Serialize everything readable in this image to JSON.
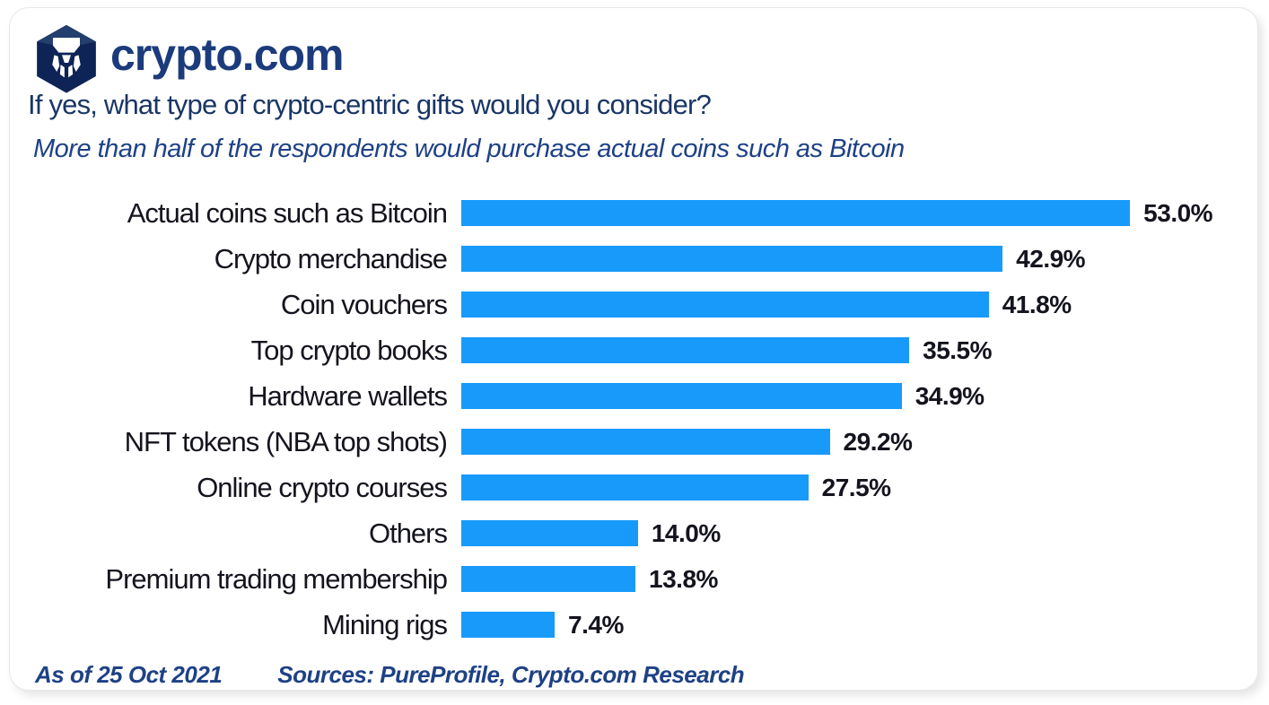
{
  "brand": {
    "name": "crypto.com",
    "logo_icon": "crypto-com-hexagon-lion-icon",
    "wordmark_color": "#1c3b7c",
    "hexagon_color": "#0e2356"
  },
  "header": {
    "title": "If yes, what type of crypto-centric gifts would you consider?",
    "subtitle": "More than half of the respondents would purchase actual coins such as Bitcoin"
  },
  "chart_data": {
    "type": "bar",
    "orientation": "horizontal",
    "title": "If yes, what type of crypto-centric gifts would you consider?",
    "subtitle": "More than half of the respondents would purchase actual coins such as Bitcoin",
    "categories": [
      "Actual coins such as Bitcoin",
      "Crypto merchandise",
      "Coin vouchers",
      "Top crypto books",
      "Hardware wallets",
      "NFT tokens (NBA top shots)",
      "Online crypto courses",
      "Others",
      "Premium trading membership",
      "Mining rigs"
    ],
    "values": [
      53.0,
      42.9,
      41.8,
      35.5,
      34.9,
      29.2,
      27.5,
      14.0,
      13.8,
      7.4
    ],
    "value_labels": [
      "53.0%",
      "42.9%",
      "41.8%",
      "35.5%",
      "34.9%",
      "29.2%",
      "27.5%",
      "14.0%",
      "13.8%",
      "7.4%"
    ],
    "unit": "%",
    "xlim": [
      0,
      56
    ],
    "grid": false,
    "legend": "none",
    "bar_color": "#189afa",
    "value_label_position": "end-of-bar"
  },
  "footer": {
    "as_of": "As of 25 Oct 2021",
    "sources": "Sources: PureProfile, Crypto.com Research"
  }
}
